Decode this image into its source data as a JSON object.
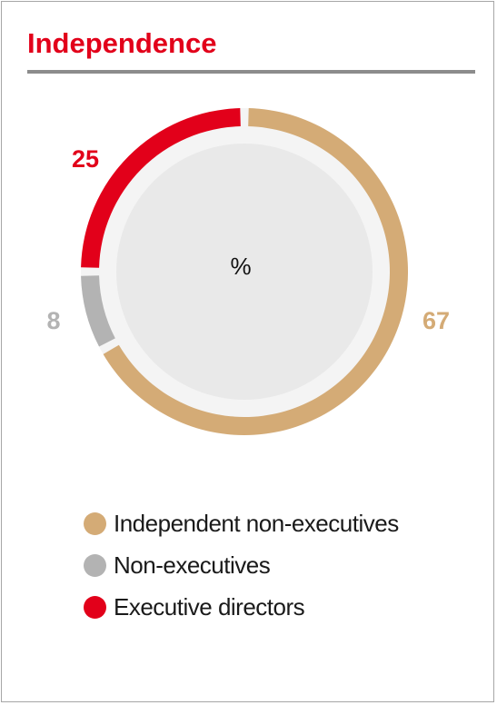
{
  "title": "Independence",
  "chart_data": {
    "type": "pie",
    "center_label": "%",
    "categories": [
      "Independent non-executives",
      "Non-executives",
      "Executive directors"
    ],
    "values": [
      67,
      8,
      25
    ],
    "colors": [
      "#d4ab76",
      "#b3b3b3",
      "#e2001a"
    ]
  },
  "legend": [
    {
      "label": "Independent non-executives",
      "color": "#d4ab76"
    },
    {
      "label": "Non-executives",
      "color": "#b3b3b3"
    },
    {
      "label": "Executive directors",
      "color": "#e2001a"
    }
  ]
}
